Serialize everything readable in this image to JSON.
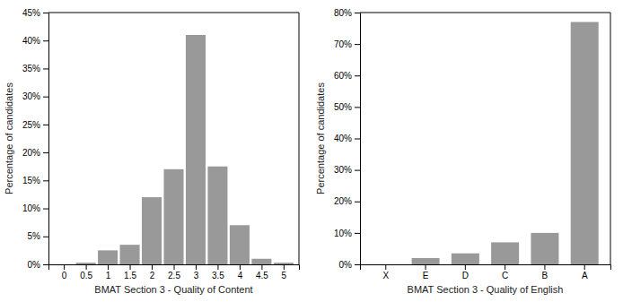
{
  "chart_data": [
    {
      "type": "bar",
      "x": [
        0,
        0.5,
        1,
        1.5,
        2,
        2.5,
        3,
        3.5,
        4,
        4.5,
        5
      ],
      "values": [
        0,
        0.3,
        2.5,
        3.5,
        12,
        17,
        41,
        17.5,
        7,
        1,
        0.3
      ],
      "xlabel": "BMAT Section 3 - Quality of Content",
      "ylabel": "Percentage of candidates",
      "xlim": [
        -0.35,
        5.35
      ],
      "xticks": [
        0,
        0.5,
        1,
        1.5,
        2,
        2.5,
        3,
        3.5,
        4,
        4.5,
        5
      ],
      "ylim": [
        0,
        45
      ],
      "yticks": [
        {
          "value": 0,
          "label": "0%"
        },
        {
          "value": 5,
          "label": "5%"
        },
        {
          "value": 10,
          "label": "10%"
        },
        {
          "value": 15,
          "label": "15%"
        },
        {
          "value": 20,
          "label": "20%"
        },
        {
          "value": 25,
          "label": "25%"
        },
        {
          "value": 30,
          "label": "30%"
        },
        {
          "value": 35,
          "label": "35%"
        },
        {
          "value": 40,
          "label": "40%"
        },
        {
          "value": 45,
          "label": "45%"
        }
      ],
      "color": "#999999",
      "grid": false
    },
    {
      "type": "bar",
      "categories": [
        "X",
        "E",
        "D",
        "C",
        "B",
        "A"
      ],
      "values": [
        0,
        2,
        3.5,
        7,
        10,
        77
      ],
      "xlabel": "BMAT Section 3 - Quality of English",
      "ylabel": "Percentage of candidates",
      "ylim": [
        0,
        80
      ],
      "yticks": [
        {
          "value": 0,
          "label": "0%"
        },
        {
          "value": 10,
          "label": "10%"
        },
        {
          "value": 20,
          "label": "20%"
        },
        {
          "value": 30,
          "label": "30%"
        },
        {
          "value": 40,
          "label": "40%"
        },
        {
          "value": 50,
          "label": "50%"
        },
        {
          "value": 60,
          "label": "60%"
        },
        {
          "value": 70,
          "label": "70%"
        },
        {
          "value": 80,
          "label": "80%"
        }
      ],
      "color": "#999999",
      "grid": false
    }
  ]
}
